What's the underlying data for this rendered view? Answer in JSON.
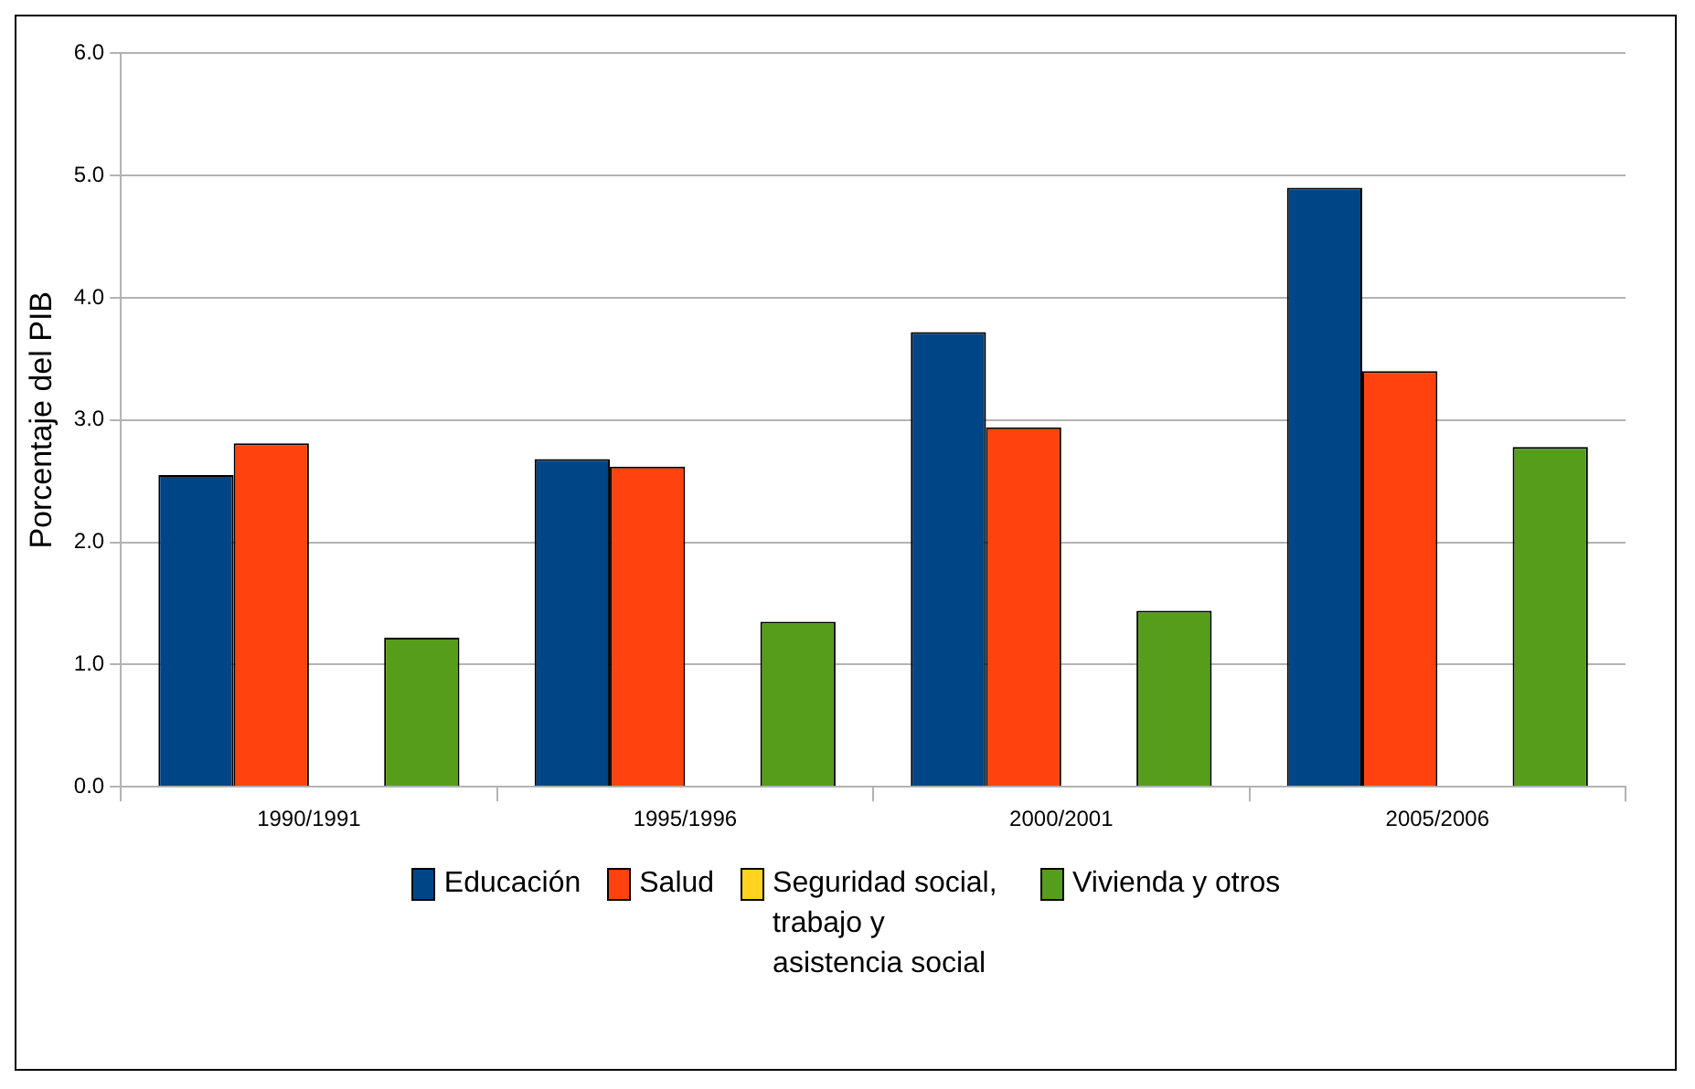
{
  "chart_data": {
    "type": "bar",
    "ylabel": "Porcentaje del PIB",
    "categories": [
      "1990/1991",
      "1995/1996",
      "2000/2001",
      "2005/2006"
    ],
    "series": [
      {
        "name": "Educación",
        "color": "#004586",
        "values": [
          2.55,
          2.68,
          3.72,
          4.9
        ]
      },
      {
        "name": "Salud",
        "color": "#ff420e",
        "values": [
          2.81,
          2.62,
          2.94,
          3.4
        ]
      },
      {
        "name": "Seguridad social, trabajo y asistencia social",
        "color": "#ffd320",
        "values": [
          null,
          null,
          null,
          null
        ]
      },
      {
        "name": "Vivienda y otros",
        "color": "#579d1c",
        "values": [
          1.22,
          1.35,
          1.44,
          2.78
        ]
      }
    ],
    "ylim": [
      0,
      6
    ],
    "yticks": [
      {
        "value": 0,
        "label": "0.0"
      },
      {
        "value": 1,
        "label": "1.0"
      },
      {
        "value": 2,
        "label": "2.0"
      },
      {
        "value": 3,
        "label": "3.0"
      },
      {
        "value": 4,
        "label": "4.0"
      },
      {
        "value": 5,
        "label": "5.0"
      },
      {
        "value": 6,
        "label": "6.0"
      }
    ],
    "grid": "y",
    "legend": "bottom"
  }
}
